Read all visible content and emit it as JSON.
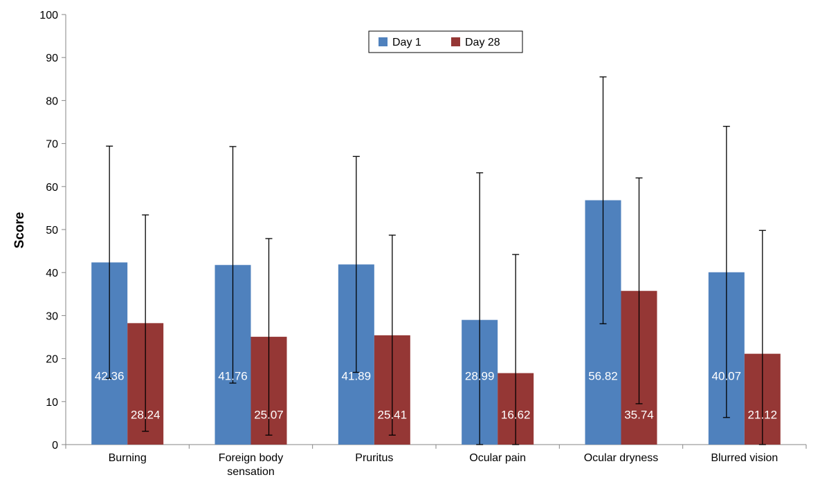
{
  "chart_data": {
    "type": "bar",
    "title": "",
    "xlabel": "",
    "ylabel": "Score",
    "ylim": [
      0,
      100
    ],
    "yticks": [
      0,
      10,
      20,
      30,
      40,
      50,
      60,
      70,
      80,
      90,
      100
    ],
    "categories": [
      "Burning",
      "Foreign body sensation",
      "Pruritus",
      "Ocular pain",
      "Ocular dryness",
      "Blurred vision"
    ],
    "category_lines": [
      [
        "Burning"
      ],
      [
        "Foreign body",
        "sensation"
      ],
      [
        "Pruritus"
      ],
      [
        "Ocular pain"
      ],
      [
        "Ocular dryness"
      ],
      [
        "Blurred vision"
      ]
    ],
    "series": [
      {
        "name": "Day 1",
        "color": "#4F81BD",
        "values": [
          42.36,
          41.76,
          41.89,
          28.99,
          56.82,
          40.07
        ],
        "labels": [
          "42.36",
          "41.76",
          "41.89",
          "28.99",
          "56.82",
          "40.07"
        ],
        "error_low": [
          15.4,
          14.3,
          16.8,
          0,
          28.1,
          6.3
        ],
        "error_high": [
          69.4,
          69.3,
          67.0,
          63.2,
          85.5,
          74.0
        ]
      },
      {
        "name": "Day 28",
        "color": "#953735",
        "values": [
          28.24,
          25.07,
          25.41,
          16.62,
          35.74,
          21.12
        ],
        "labels": [
          "28.24",
          "25.07",
          "25.41",
          "16.62",
          "35.74",
          "21.12"
        ],
        "error_low": [
          3.1,
          2.2,
          2.2,
          0,
          9.5,
          0
        ],
        "error_high": [
          53.4,
          47.9,
          48.7,
          44.2,
          62.0,
          49.8
        ]
      }
    ],
    "legend_position": "top-center",
    "grid": false,
    "error_bars": true
  }
}
